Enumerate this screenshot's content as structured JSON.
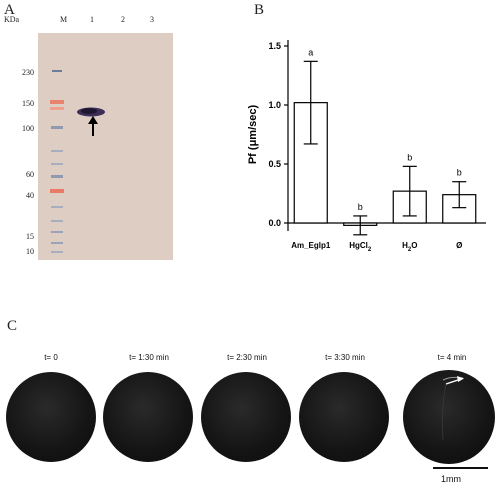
{
  "panels": {
    "a": "A",
    "b": "B",
    "c": "C"
  },
  "blot": {
    "unit_label": "KDa",
    "lane_labels": [
      "M",
      "1",
      "2",
      "3"
    ],
    "marker_sizes": [
      "230",
      "150",
      "100",
      "60",
      "40",
      "15",
      "10"
    ],
    "background_color": "#d9c8bd"
  },
  "chart_data": {
    "type": "bar",
    "categories": [
      "Am_Eglp1",
      "HgCl2",
      "H2O",
      "Ø"
    ],
    "category_labels": [
      {
        "main": "Am_Eglp1",
        "sub": ""
      },
      {
        "main": "HgCl",
        "sub": "2"
      },
      {
        "main": "H",
        "sub": "2",
        "tail": "O"
      },
      {
        "main": "Ø",
        "sub": ""
      }
    ],
    "values": [
      1.02,
      -0.02,
      0.27,
      0.24
    ],
    "error": [
      0.35,
      0.08,
      0.21,
      0.11
    ],
    "significance": [
      "a",
      "b",
      "b",
      "b"
    ],
    "ylabel": "Pf (μm/sec)",
    "ylim": [
      0,
      1.5
    ],
    "yticks": [
      "0.0",
      "0.5",
      "1.0",
      "1.5"
    ],
    "ytick_values": [
      0,
      0.5,
      1.0,
      1.5
    ]
  },
  "timelapse": {
    "frames": [
      "t= 0",
      "t= 1:30 min",
      "t= 2:30 min",
      "t= 3:30 min",
      "t= 4 min"
    ],
    "scale_label": "1mm"
  }
}
